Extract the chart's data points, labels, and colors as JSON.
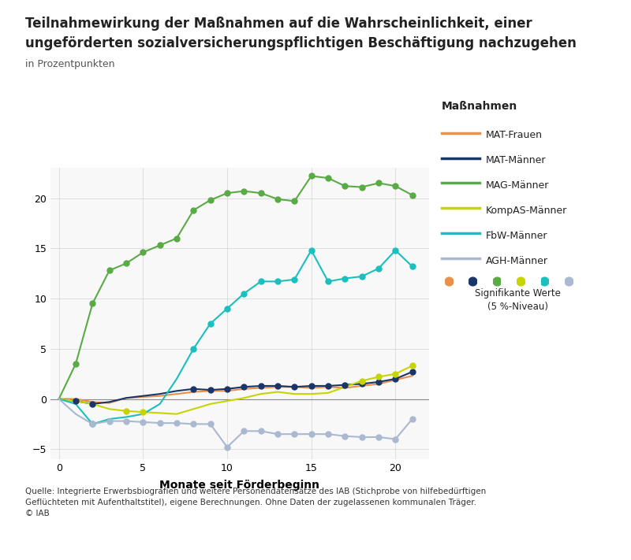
{
  "title_line1": "Teilnahmewirkung der Maßnahmen auf die Wahrscheinlichkeit, einer",
  "title_line2": "ungeförderten sozialversicherungspflichtigen Beschäftigung nachzugehen",
  "subtitle": "in Prozentpunkten",
  "xlabel": "Monate seit Förderbeginn",
  "source_text": "Quelle: Integrierte Erwerbsbiografien und weitere Personendatensätze des IAB (Stichprobe von hilfebedürftigen\nGeflüchteten mit Aufenthaltstitel), eigene Berechnungen. Ohne Daten der zugelassenen kommunalen Träger.\n© IAB",
  "legend_title": "Maßnahmen",
  "legend_sig": "Signifikante Werte\n(5 %-Niveau)",
  "ylim": [
    -6,
    23
  ],
  "yticks": [
    -5,
    0,
    5,
    10,
    15,
    20
  ],
  "xticks": [
    0,
    5,
    10,
    15,
    20
  ],
  "bg_color": "#ffffff",
  "grid_color": "#cccccc",
  "zero_line_color": "#888888",
  "series": {
    "MAT-Frauen": {
      "color": "#E8914A",
      "x": [
        0,
        1,
        2,
        3,
        4,
        5,
        6,
        7,
        8,
        9,
        10,
        11,
        12,
        13,
        14,
        15,
        16,
        17,
        18,
        19,
        20,
        21
      ],
      "y": [
        0.0,
        0.0,
        -0.3,
        -0.4,
        0.1,
        0.2,
        0.3,
        0.5,
        0.7,
        0.8,
        0.8,
        1.0,
        1.1,
        1.2,
        1.2,
        1.1,
        1.2,
        1.1,
        1.3,
        1.5,
        1.9,
        2.3
      ],
      "sig": [
        false,
        false,
        false,
        false,
        false,
        false,
        false,
        false,
        false,
        false,
        false,
        false,
        false,
        false,
        false,
        false,
        false,
        false,
        false,
        false,
        false,
        false
      ]
    },
    "MAT-Männer": {
      "color": "#1a3668",
      "x": [
        0,
        1,
        2,
        3,
        4,
        5,
        6,
        7,
        8,
        9,
        10,
        11,
        12,
        13,
        14,
        15,
        16,
        17,
        18,
        19,
        20,
        21
      ],
      "y": [
        0.0,
        -0.2,
        -0.5,
        -0.3,
        0.1,
        0.3,
        0.5,
        0.8,
        1.0,
        0.9,
        1.0,
        1.2,
        1.3,
        1.3,
        1.2,
        1.3,
        1.3,
        1.4,
        1.5,
        1.7,
        2.0,
        2.7
      ],
      "sig": [
        false,
        true,
        true,
        false,
        false,
        false,
        false,
        false,
        true,
        true,
        true,
        true,
        true,
        true,
        true,
        true,
        true,
        true,
        true,
        true,
        true,
        true
      ]
    },
    "MAG-Männer": {
      "color": "#5aaa46",
      "x": [
        0,
        1,
        2,
        3,
        4,
        5,
        6,
        7,
        8,
        9,
        10,
        11,
        12,
        13,
        14,
        15,
        16,
        17,
        18,
        19,
        20,
        21
      ],
      "y": [
        0.0,
        3.5,
        9.5,
        12.8,
        13.5,
        14.6,
        15.3,
        16.0,
        18.8,
        19.8,
        20.5,
        20.7,
        20.5,
        19.9,
        19.7,
        22.2,
        22.0,
        21.2,
        21.1,
        21.5,
        21.2,
        20.3
      ],
      "sig": [
        false,
        true,
        true,
        true,
        true,
        true,
        true,
        true,
        true,
        true,
        true,
        true,
        true,
        true,
        true,
        true,
        true,
        true,
        true,
        true,
        true,
        true
      ]
    },
    "KompAS-Männer": {
      "color": "#c8d400",
      "x": [
        0,
        1,
        2,
        3,
        4,
        5,
        6,
        7,
        8,
        9,
        10,
        11,
        12,
        13,
        14,
        15,
        16,
        17,
        18,
        19,
        20,
        21
      ],
      "y": [
        0.0,
        -0.2,
        -0.5,
        -1.0,
        -1.2,
        -1.3,
        -1.4,
        -1.5,
        -1.0,
        -0.5,
        -0.2,
        0.1,
        0.5,
        0.7,
        0.5,
        0.5,
        0.6,
        1.2,
        1.8,
        2.2,
        2.5,
        3.3
      ],
      "sig": [
        false,
        false,
        false,
        false,
        true,
        true,
        false,
        false,
        false,
        false,
        false,
        false,
        false,
        false,
        false,
        false,
        false,
        false,
        true,
        true,
        true,
        true
      ]
    },
    "FbW-Männer": {
      "color": "#1abfbf",
      "x": [
        0,
        1,
        2,
        3,
        4,
        5,
        6,
        7,
        8,
        9,
        10,
        11,
        12,
        13,
        14,
        15,
        16,
        17,
        18,
        19,
        20,
        21
      ],
      "y": [
        0.0,
        -0.5,
        -2.5,
        -2.0,
        -1.8,
        -1.5,
        -0.5,
        2.0,
        5.0,
        7.5,
        9.0,
        10.5,
        11.7,
        11.7,
        11.9,
        14.8,
        11.7,
        12.0,
        12.2,
        13.0,
        14.8,
        13.2
      ],
      "sig": [
        false,
        false,
        true,
        false,
        false,
        false,
        false,
        false,
        true,
        true,
        true,
        true,
        true,
        true,
        true,
        true,
        true,
        true,
        true,
        true,
        true,
        true
      ]
    },
    "AGH-Männer": {
      "color": "#aab8d0",
      "x": [
        0,
        1,
        2,
        3,
        4,
        5,
        6,
        7,
        8,
        9,
        10,
        11,
        12,
        13,
        14,
        15,
        16,
        17,
        18,
        19,
        20,
        21
      ],
      "y": [
        0.0,
        -1.5,
        -2.5,
        -2.2,
        -2.2,
        -2.3,
        -2.4,
        -2.4,
        -2.5,
        -2.5,
        -4.8,
        -3.2,
        -3.2,
        -3.5,
        -3.5,
        -3.5,
        -3.5,
        -3.7,
        -3.8,
        -3.8,
        -4.0,
        -2.0
      ],
      "sig": [
        false,
        false,
        true,
        true,
        true,
        true,
        true,
        true,
        true,
        true,
        true,
        true,
        true,
        true,
        true,
        true,
        true,
        true,
        true,
        true,
        true,
        true
      ]
    }
  }
}
